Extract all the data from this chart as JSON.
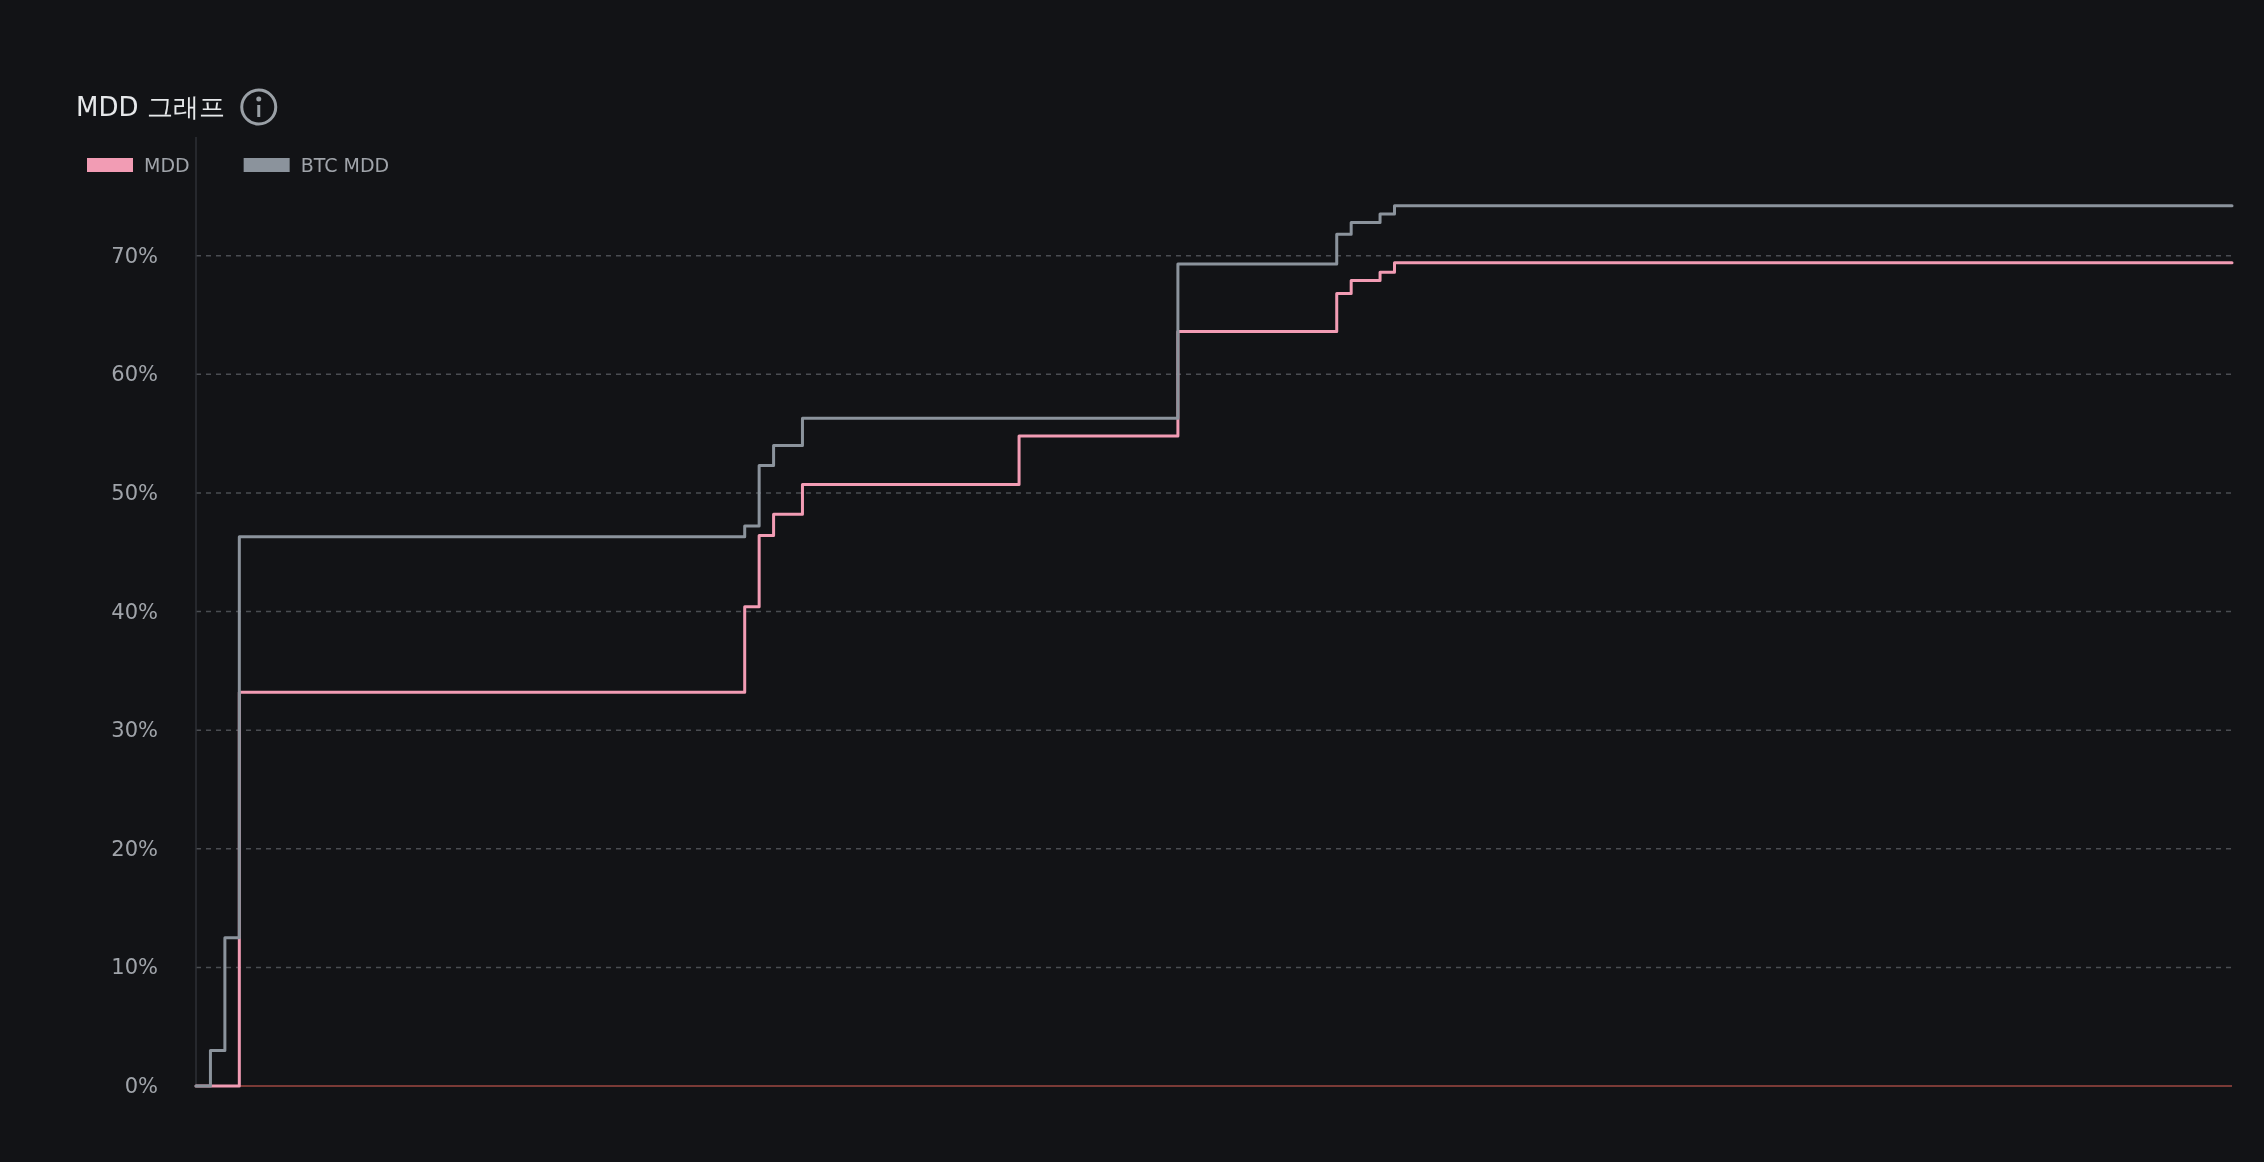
{
  "chart_data": {
    "type": "step",
    "title": "MDD 그래프",
    "legend": "top left",
    "grid": "y",
    "line_style": "solid",
    "marker": "none",
    "ylim": [
      0,
      80
    ],
    "yticks": [
      {
        "value": 0,
        "label": "0%"
      },
      {
        "value": 10,
        "label": "10%"
      },
      {
        "value": 20,
        "label": "20%"
      },
      {
        "value": 30,
        "label": "30%"
      },
      {
        "value": 40,
        "label": "40%"
      },
      {
        "value": 50,
        "label": "50%"
      },
      {
        "value": 60,
        "label": "60%"
      },
      {
        "value": 70,
        "label": "70%"
      }
    ],
    "ref_lines": [
      {
        "axis": "y",
        "value": 0,
        "color": "#7a3a36"
      }
    ],
    "categories": [
      null,
      null,
      null,
      null,
      null,
      null,
      null,
      null,
      null,
      null,
      null,
      null,
      null,
      null,
      null,
      null,
      null,
      null,
      null,
      null,
      null,
      null,
      null,
      null,
      null,
      null,
      null,
      null,
      null,
      null,
      null,
      null,
      null,
      null,
      null,
      null,
      null,
      null,
      null,
      null,
      null,
      null,
      null,
      null,
      null,
      null,
      null,
      null,
      null,
      null,
      null,
      null,
      null,
      null,
      null,
      null,
      null,
      null,
      null,
      null,
      null,
      null,
      null,
      null,
      null,
      null,
      null,
      null,
      null,
      null,
      null,
      null,
      null,
      null,
      null,
      null,
      null,
      null,
      null,
      null,
      null,
      null,
      null,
      null,
      null,
      null,
      null,
      null,
      null,
      null,
      null,
      null,
      null,
      null,
      null,
      null,
      null,
      null,
      null,
      null,
      null,
      null,
      null,
      null,
      null,
      null,
      null,
      null,
      null,
      null,
      null,
      null,
      null,
      null,
      null,
      null,
      null,
      null,
      null,
      null,
      null,
      null,
      null,
      null,
      null,
      null,
      null,
      null,
      null,
      null,
      null,
      null,
      null,
      null,
      null,
      null,
      null,
      null,
      null,
      null,
      null,
      null
    ],
    "series": [
      {
        "name": "MDD",
        "color": "#f29cb4",
        "values": [
          0,
          0,
          0,
          33.2,
          33.2,
          33.2,
          33.2,
          33.2,
          33.2,
          33.2,
          33.2,
          33.2,
          33.2,
          33.2,
          33.2,
          33.2,
          33.2,
          33.2,
          33.2,
          33.2,
          33.2,
          33.2,
          33.2,
          33.2,
          33.2,
          33.2,
          33.2,
          33.2,
          33.2,
          33.2,
          33.2,
          33.2,
          33.2,
          33.2,
          33.2,
          33.2,
          33.2,
          33.2,
          40.4,
          46.4,
          48.2,
          48.2,
          50.7,
          50.7,
          50.7,
          50.7,
          50.7,
          50.7,
          50.7,
          50.7,
          50.7,
          50.7,
          50.7,
          50.7,
          50.7,
          50.7,
          50.7,
          54.8,
          54.8,
          54.8,
          54.8,
          54.8,
          54.8,
          54.8,
          54.8,
          54.8,
          54.8,
          54.8,
          63.6,
          63.6,
          63.6,
          63.6,
          63.6,
          63.6,
          63.6,
          63.6,
          63.6,
          63.6,
          63.6,
          66.8,
          67.9,
          67.9,
          68.6,
          69.4,
          69.4,
          69.4,
          69.4,
          69.4,
          69.4,
          69.4,
          69.4,
          69.4,
          69.4,
          69.4,
          69.4,
          69.4,
          69.4,
          69.4,
          69.4,
          69.4,
          69.4,
          69.4,
          69.4,
          69.4,
          69.4,
          69.4,
          69.4,
          69.4,
          69.4,
          69.4,
          69.4,
          69.4,
          69.4,
          69.4,
          69.4,
          69.4,
          69.4,
          69.4,
          69.4,
          69.4,
          69.4,
          69.4,
          69.4,
          69.4,
          69.4,
          69.4,
          69.4,
          69.4,
          69.4,
          69.4,
          69.4,
          69.4,
          69.4,
          69.4,
          69.4,
          69.4,
          69.4,
          69.4,
          69.4,
          69.4,
          69.4,
          69.4
        ]
      },
      {
        "name": "BTC MDD",
        "color": "#8b939c",
        "values": [
          0,
          3,
          12.5,
          46.3,
          46.3,
          46.3,
          46.3,
          46.3,
          46.3,
          46.3,
          46.3,
          46.3,
          46.3,
          46.3,
          46.3,
          46.3,
          46.3,
          46.3,
          46.3,
          46.3,
          46.3,
          46.3,
          46.3,
          46.3,
          46.3,
          46.3,
          46.3,
          46.3,
          46.3,
          46.3,
          46.3,
          46.3,
          46.3,
          46.3,
          46.3,
          46.3,
          46.3,
          46.3,
          47.2,
          52.3,
          54,
          54,
          56.3,
          56.3,
          56.3,
          56.3,
          56.3,
          56.3,
          56.3,
          56.3,
          56.3,
          56.3,
          56.3,
          56.3,
          56.3,
          56.3,
          56.3,
          56.3,
          56.3,
          56.3,
          56.3,
          56.3,
          56.3,
          56.3,
          56.3,
          56.3,
          56.3,
          56.3,
          69.3,
          69.3,
          69.3,
          69.3,
          69.3,
          69.3,
          69.3,
          69.3,
          69.3,
          69.3,
          69.3,
          71.8,
          72.8,
          72.8,
          73.5,
          74.2,
          74.2,
          74.2,
          74.2,
          74.2,
          74.2,
          74.2,
          74.2,
          74.2,
          74.2,
          74.2,
          74.2,
          74.2,
          74.2,
          74.2,
          74.2,
          74.2,
          74.2,
          74.2,
          74.2,
          74.2,
          74.2,
          74.2,
          74.2,
          74.2,
          74.2,
          74.2,
          74.2,
          74.2,
          74.2,
          74.2,
          74.2,
          74.2,
          74.2,
          74.2,
          74.2,
          74.2,
          74.2,
          74.2,
          74.2,
          74.2,
          74.2,
          74.2,
          74.2,
          74.2,
          74.2,
          74.2,
          74.2,
          74.2,
          74.2,
          74.2,
          74.2,
          74.2,
          74.2,
          74.2,
          74.2,
          74.2,
          74.2,
          74.2
        ]
      }
    ]
  }
}
